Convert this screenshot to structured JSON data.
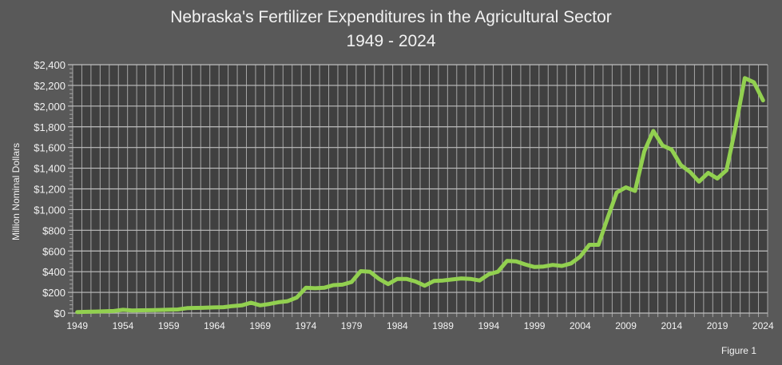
{
  "chart_data": {
    "type": "line",
    "title": "Nebraska's Fertilizer Expenditures in the Agricultural Sector",
    "subtitle": "1949 - 2024",
    "xlabel": "",
    "ylabel": "Million Nominal Dollars",
    "ylim": [
      0,
      2400
    ],
    "yticks": [
      "$0",
      "$200",
      "$400",
      "$600",
      "$800",
      "$1,000",
      "$1,200",
      "$1,400",
      "$1,600",
      "$1,800",
      "$2,000",
      "$2,200",
      "$2,400"
    ],
    "xtick_labels": [
      "1949",
      "1954",
      "1959",
      "1964",
      "1969",
      "1974",
      "1979",
      "1984",
      "1989",
      "1994",
      "1999",
      "2004",
      "2009",
      "2014",
      "2019",
      "2024"
    ],
    "grid": true,
    "legend": null,
    "line_color": "#92d050",
    "x": [
      1949,
      1950,
      1951,
      1952,
      1953,
      1954,
      1955,
      1956,
      1957,
      1958,
      1959,
      1960,
      1961,
      1962,
      1963,
      1964,
      1965,
      1966,
      1967,
      1968,
      1969,
      1970,
      1971,
      1972,
      1973,
      1974,
      1975,
      1976,
      1977,
      1978,
      1979,
      1980,
      1981,
      1982,
      1983,
      1984,
      1985,
      1986,
      1987,
      1988,
      1989,
      1990,
      1991,
      1992,
      1993,
      1994,
      1995,
      1996,
      1997,
      1998,
      1999,
      2000,
      2001,
      2002,
      2003,
      2004,
      2005,
      2006,
      2007,
      2008,
      2009,
      2010,
      2011,
      2012,
      2013,
      2014,
      2015,
      2016,
      2017,
      2018,
      2019,
      2020,
      2021,
      2022,
      2023,
      2024
    ],
    "series": [
      {
        "name": "Fertilizer Expenditures",
        "values": [
          10,
          12,
          15,
          17,
          20,
          32,
          25,
          27,
          28,
          30,
          33,
          35,
          48,
          50,
          52,
          55,
          57,
          68,
          75,
          100,
          75,
          88,
          105,
          115,
          150,
          245,
          240,
          245,
          270,
          275,
          300,
          405,
          400,
          330,
          280,
          330,
          330,
          305,
          265,
          310,
          315,
          325,
          335,
          330,
          315,
          375,
          400,
          505,
          500,
          470,
          445,
          450,
          465,
          455,
          480,
          545,
          660,
          660,
          920,
          1165,
          1215,
          1180,
          1560,
          1760,
          1620,
          1580,
          1430,
          1365,
          1270,
          1355,
          1300,
          1380,
          1800,
          2270,
          2230,
          2055
        ]
      }
    ]
  },
  "footer": {
    "figure_label": "Figure 1"
  }
}
